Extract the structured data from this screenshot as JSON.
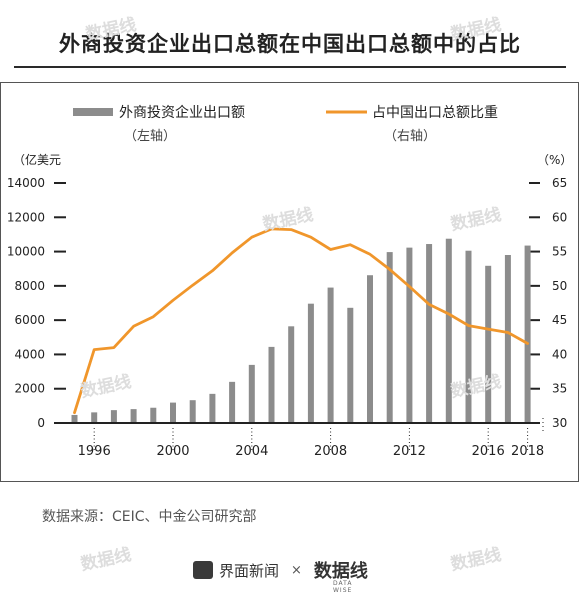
{
  "title": "外商投资企业出口总额在中国出口总额中的占比",
  "source": "数据来源：CEIC、中金公司研究部",
  "brand": {
    "name": "界面新闻",
    "separator": "×",
    "partner": "数据线",
    "partner_sub": "DATA WISE"
  },
  "watermark": "数据线",
  "colors": {
    "bar": "#8c8c8c",
    "line": "#f0962b",
    "axis": "#222222",
    "frame": "#555555"
  },
  "chart_data": {
    "type": "bar+line",
    "categories": [
      1995,
      1996,
      1997,
      1998,
      1999,
      2000,
      2001,
      2002,
      2003,
      2004,
      2005,
      2006,
      2007,
      2008,
      2009,
      2010,
      2011,
      2012,
      2013,
      2014,
      2015,
      2016,
      2017,
      2018
    ],
    "series": [
      {
        "name": "外商投资企业出口额",
        "axis_note": "（左轴）",
        "type": "bar",
        "axis": "left",
        "values": [
          470,
          620,
          750,
          810,
          890,
          1190,
          1330,
          1700,
          2400,
          3390,
          4440,
          5640,
          6960,
          7900,
          6720,
          8620,
          9970,
          10230,
          10440,
          10750,
          10050,
          9170,
          9800,
          10350
        ]
      },
      {
        "name": "占中国出口总额比重",
        "axis_note": "（右轴）",
        "type": "line",
        "axis": "right",
        "values": [
          31.5,
          40.7,
          41.0,
          44.1,
          45.5,
          47.9,
          50.1,
          52.2,
          54.8,
          57.1,
          58.3,
          58.2,
          57.1,
          55.3,
          56.0,
          54.6,
          52.4,
          49.9,
          47.3,
          45.9,
          44.2,
          43.7,
          43.2,
          41.6
        ]
      }
    ],
    "left_axis": {
      "unit": "（亿美元",
      "ticks": [
        0,
        2000,
        4000,
        6000,
        8000,
        10000,
        12000,
        14000
      ],
      "ylim": [
        0,
        14000
      ]
    },
    "right_axis": {
      "unit": "（%）",
      "ticks": [
        30,
        35,
        40,
        45,
        50,
        55,
        60,
        65
      ],
      "ylim": [
        30,
        65
      ]
    },
    "x_tick_labels": [
      "1996",
      "2000",
      "2004",
      "2008",
      "2012",
      "2016",
      "2018"
    ],
    "legend_position": "top",
    "grid": false
  }
}
